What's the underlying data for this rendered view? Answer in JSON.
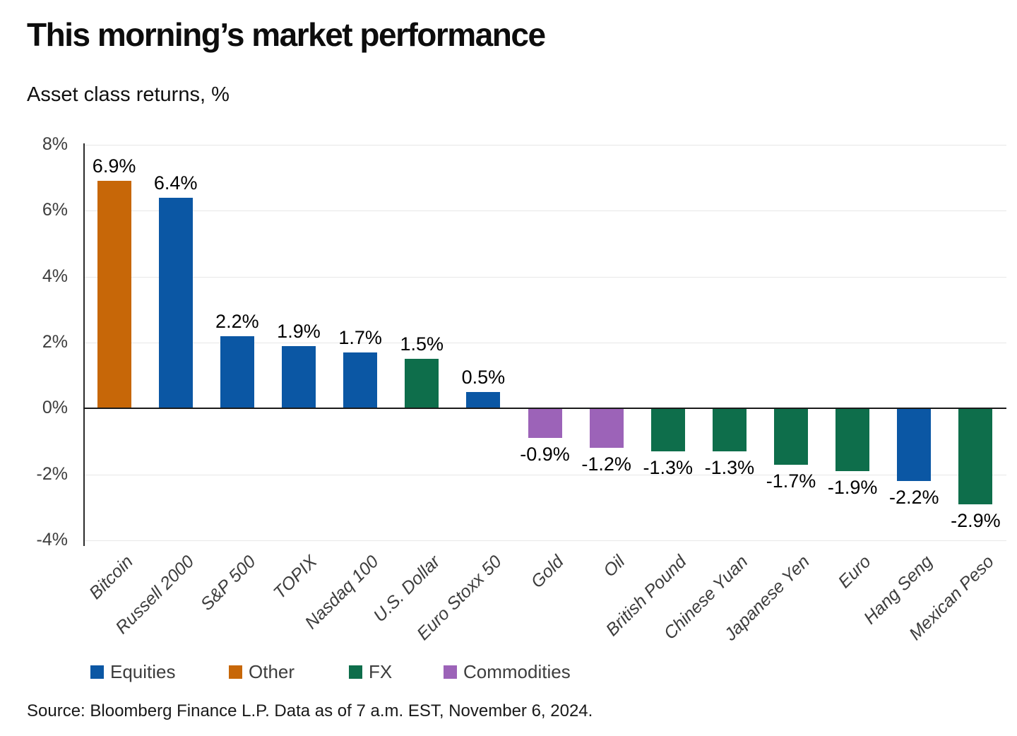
{
  "header": {
    "title": "This morning’s market performance",
    "subtitle": "Asset class returns, %"
  },
  "chart_data": {
    "type": "bar",
    "title": "This morning’s market performance",
    "subtitle": "Asset class returns, %",
    "categories": [
      "Bitcoin",
      "Russell 2000",
      "S&P 500",
      "TOPIX",
      "Nasdaq 100",
      "U.S. Dollar",
      "Euro Stoxx 50",
      "Gold",
      "Oil",
      "British Pound",
      "Chinese Yuan",
      "Japanese Yen",
      "Euro",
      "Hang Seng",
      "Mexican Peso"
    ],
    "values": [
      6.9,
      6.4,
      2.2,
      1.9,
      1.7,
      1.5,
      0.5,
      -0.9,
      -1.2,
      -1.3,
      -1.3,
      -1.7,
      -1.9,
      -2.2,
      -2.9
    ],
    "value_labels": [
      "6.9%",
      "6.4%",
      "2.2%",
      "1.9%",
      "1.7%",
      "1.5%",
      "0.5%",
      "-0.9%",
      "-1.2%",
      "-1.3%",
      "-1.3%",
      "-1.7%",
      "-1.9%",
      "-2.2%",
      "-2.9%"
    ],
    "asset_classes": [
      "Other",
      "Equities",
      "Equities",
      "Equities",
      "Equities",
      "FX",
      "Equities",
      "Commodities",
      "Commodities",
      "FX",
      "FX",
      "FX",
      "FX",
      "Equities",
      "FX"
    ],
    "class_colors": {
      "Equities": "#0b57a4",
      "Other": "#c76708",
      "FX": "#0e6e4b",
      "Commodities": "#9c63b8"
    },
    "ylabel": "",
    "xlabel": "",
    "ylim": [
      -4,
      8
    ],
    "yticks": [
      {
        "value": 8,
        "label": "8%"
      },
      {
        "value": 6,
        "label": "6%"
      },
      {
        "value": 4,
        "label": "4%"
      },
      {
        "value": 2,
        "label": "2%"
      },
      {
        "value": 0,
        "label": "0%"
      },
      {
        "value": -2,
        "label": "-2%"
      },
      {
        "value": -4,
        "label": "-4%"
      }
    ],
    "grid": "horizontal",
    "legend": {
      "position": "bottom",
      "items": [
        {
          "label": "Equities",
          "color": "#0b57a4"
        },
        {
          "label": "Other",
          "color": "#c76708"
        },
        {
          "label": "FX",
          "color": "#0e6e4b"
        },
        {
          "label": "Commodities",
          "color": "#9c63b8"
        }
      ]
    }
  },
  "footer": {
    "source": "Source: Bloomberg Finance L.P. Data as of 7 a.m. EST, November 6, 2024."
  }
}
